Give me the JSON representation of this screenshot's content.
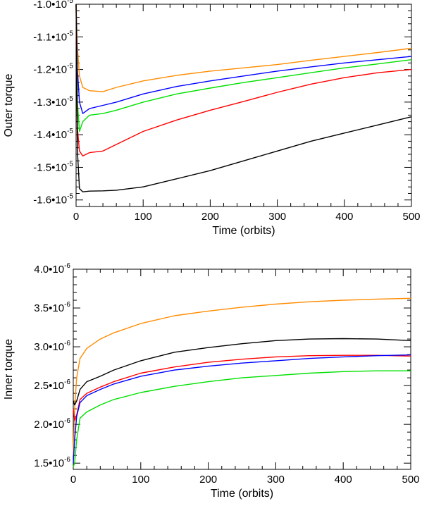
{
  "chart_data": [
    {
      "type": "line",
      "xlabel": "Time (orbits)",
      "ylabel": "Outer torque",
      "xlim": [
        0,
        500
      ],
      "ylim": [
        -1.62e-05,
        -1e-05
      ],
      "grid": false,
      "x_ticks": [
        0,
        100,
        200,
        300,
        400,
        500
      ],
      "x_tick_labels": [
        "0",
        "100",
        "200",
        "300",
        "400",
        "500"
      ],
      "y_ticks": [
        -1.6e-05,
        -1.5e-05,
        -1.4e-05,
        -1.3e-05,
        -1.2e-05,
        -1.1e-05,
        -1e-05
      ],
      "y_tick_labels": [
        {
          "mantissa": "-1.6•10",
          "exp": "-5"
        },
        {
          "mantissa": "-1.5•10",
          "exp": "-5"
        },
        {
          "mantissa": "-1.4•10",
          "exp": "-5"
        },
        {
          "mantissa": "-1.3•10",
          "exp": "-5"
        },
        {
          "mantissa": "-1.2•10",
          "exp": "-5"
        },
        {
          "mantissa": "-1.1•10",
          "exp": "-5"
        },
        {
          "mantissa": "-1.0•10",
          "exp": "-5"
        }
      ],
      "series": [
        {
          "color": "#ff8c00",
          "x": [
            0,
            2,
            5,
            10,
            20,
            40,
            60,
            100,
            150,
            200,
            250,
            300,
            350,
            400,
            450,
            500
          ],
          "y": [
            -1e-05,
            -1.13e-05,
            -1.22e-05,
            -1.255e-05,
            -1.265e-05,
            -1.268e-05,
            -1.255e-05,
            -1.235e-05,
            -1.218e-05,
            -1.205e-05,
            -1.195e-05,
            -1.185e-05,
            -1.172e-05,
            -1.16e-05,
            -1.148e-05,
            -1.135e-05
          ]
        },
        {
          "color": "#0000ff",
          "x": [
            0,
            2,
            5,
            10,
            20,
            40,
            60,
            100,
            150,
            200,
            250,
            300,
            350,
            400,
            450,
            500
          ],
          "y": [
            -1e-05,
            -1.2e-05,
            -1.3e-05,
            -1.335e-05,
            -1.32e-05,
            -1.31e-05,
            -1.3e-05,
            -1.275e-05,
            -1.252e-05,
            -1.235e-05,
            -1.22e-05,
            -1.205e-05,
            -1.192e-05,
            -1.18e-05,
            -1.17e-05,
            -1.16e-05
          ]
        },
        {
          "color": "#00e000",
          "x": [
            0,
            2,
            5,
            10,
            20,
            40,
            60,
            100,
            150,
            200,
            250,
            300,
            350,
            400,
            450,
            500
          ],
          "y": [
            -1e-05,
            -1.3e-05,
            -1.39e-05,
            -1.36e-05,
            -1.34e-05,
            -1.335e-05,
            -1.325e-05,
            -1.3e-05,
            -1.275e-05,
            -1.257e-05,
            -1.24e-05,
            -1.225e-05,
            -1.21e-05,
            -1.195e-05,
            -1.183e-05,
            -1.17e-05
          ]
        },
        {
          "color": "#ff0000",
          "x": [
            0,
            2,
            5,
            10,
            20,
            40,
            60,
            100,
            150,
            200,
            250,
            300,
            350,
            400,
            450,
            500
          ],
          "y": [
            -1e-05,
            -1.38e-05,
            -1.45e-05,
            -1.465e-05,
            -1.455e-05,
            -1.45e-05,
            -1.43e-05,
            -1.39e-05,
            -1.355e-05,
            -1.325e-05,
            -1.298e-05,
            -1.27e-05,
            -1.245e-05,
            -1.225e-05,
            -1.21e-05,
            -1.2e-05
          ]
        },
        {
          "color": "#000000",
          "x": [
            0,
            2,
            5,
            10,
            20,
            40,
            60,
            100,
            150,
            200,
            250,
            300,
            350,
            400,
            450,
            500
          ],
          "y": [
            -1e-05,
            -1.45e-05,
            -1.565e-05,
            -1.575e-05,
            -1.573e-05,
            -1.572e-05,
            -1.57e-05,
            -1.56e-05,
            -1.535e-05,
            -1.51e-05,
            -1.48e-05,
            -1.45e-05,
            -1.42e-05,
            -1.395e-05,
            -1.37e-05,
            -1.345e-05
          ]
        }
      ]
    },
    {
      "type": "line",
      "xlabel": "Time (orbits)",
      "ylabel": "Inner torque",
      "xlim": [
        0,
        500
      ],
      "ylim": [
        1.42e-06,
        4e-06
      ],
      "grid": false,
      "x_ticks": [
        0,
        100,
        200,
        300,
        400,
        500
      ],
      "x_tick_labels": [
        "0",
        "100",
        "200",
        "300",
        "400",
        "500"
      ],
      "y_ticks": [
        1.5e-06,
        2e-06,
        2.5e-06,
        3e-06,
        3.5e-06,
        4e-06
      ],
      "y_tick_labels": [
        {
          "mantissa": "1.5•10",
          "exp": "-6"
        },
        {
          "mantissa": "2.0•10",
          "exp": "-6"
        },
        {
          "mantissa": "2.5•10",
          "exp": "-6"
        },
        {
          "mantissa": "3.0•10",
          "exp": "-6"
        },
        {
          "mantissa": "3.5•10",
          "exp": "-6"
        },
        {
          "mantissa": "4.0•10",
          "exp": "-6"
        }
      ],
      "series": [
        {
          "color": "#ff8c00",
          "x": [
            0,
            2,
            5,
            10,
            20,
            40,
            60,
            100,
            150,
            200,
            250,
            300,
            350,
            400,
            450,
            500
          ],
          "y": [
            1.6e-06,
            2.2e-06,
            2.6e-06,
            2.85e-06,
            2.98e-06,
            3.1e-06,
            3.18e-06,
            3.3e-06,
            3.4e-06,
            3.46e-06,
            3.51e-06,
            3.55e-06,
            3.58e-06,
            3.6e-06,
            3.615e-06,
            3.625e-06
          ]
        },
        {
          "color": "#000000",
          "x": [
            0,
            2,
            5,
            10,
            20,
            40,
            60,
            100,
            150,
            200,
            250,
            300,
            350,
            400,
            450,
            500
          ],
          "y": [
            2.3e-06,
            2.25e-06,
            2.3e-06,
            2.45e-06,
            2.55e-06,
            2.62e-06,
            2.7e-06,
            2.82e-06,
            2.93e-06,
            2.99e-06,
            3.04e-06,
            3.08e-06,
            3.1e-06,
            3.105e-06,
            3.1e-06,
            3.08e-06
          ]
        },
        {
          "color": "#ff0000",
          "x": [
            0,
            2,
            5,
            10,
            20,
            40,
            60,
            100,
            150,
            200,
            250,
            300,
            350,
            400,
            450,
            500
          ],
          "y": [
            2.2e-06,
            2.05e-06,
            2.12e-06,
            2.32e-06,
            2.4e-06,
            2.48e-06,
            2.55e-06,
            2.66e-06,
            2.74e-06,
            2.8e-06,
            2.84e-06,
            2.87e-06,
            2.885e-06,
            2.89e-06,
            2.89e-06,
            2.88e-06
          ]
        },
        {
          "color": "#0000ff",
          "x": [
            0,
            2,
            5,
            10,
            20,
            40,
            60,
            100,
            150,
            200,
            250,
            300,
            350,
            400,
            450,
            500
          ],
          "y": [
            1.5e-06,
            1.8e-06,
            2.1e-06,
            2.28e-06,
            2.37e-06,
            2.45e-06,
            2.52e-06,
            2.62e-06,
            2.7e-06,
            2.75e-06,
            2.79e-06,
            2.82e-06,
            2.85e-06,
            2.87e-06,
            2.885e-06,
            2.895e-06
          ]
        },
        {
          "color": "#00e000",
          "x": [
            0,
            2,
            5,
            10,
            20,
            40,
            60,
            100,
            150,
            200,
            250,
            300,
            350,
            400,
            450,
            500
          ],
          "y": [
            1.45e-06,
            1.5e-06,
            1.8e-06,
            2.08e-06,
            2.16e-06,
            2.25e-06,
            2.32e-06,
            2.41e-06,
            2.49e-06,
            2.55e-06,
            2.6e-06,
            2.63e-06,
            2.66e-06,
            2.68e-06,
            2.69e-06,
            2.69e-06
          ]
        }
      ]
    }
  ]
}
